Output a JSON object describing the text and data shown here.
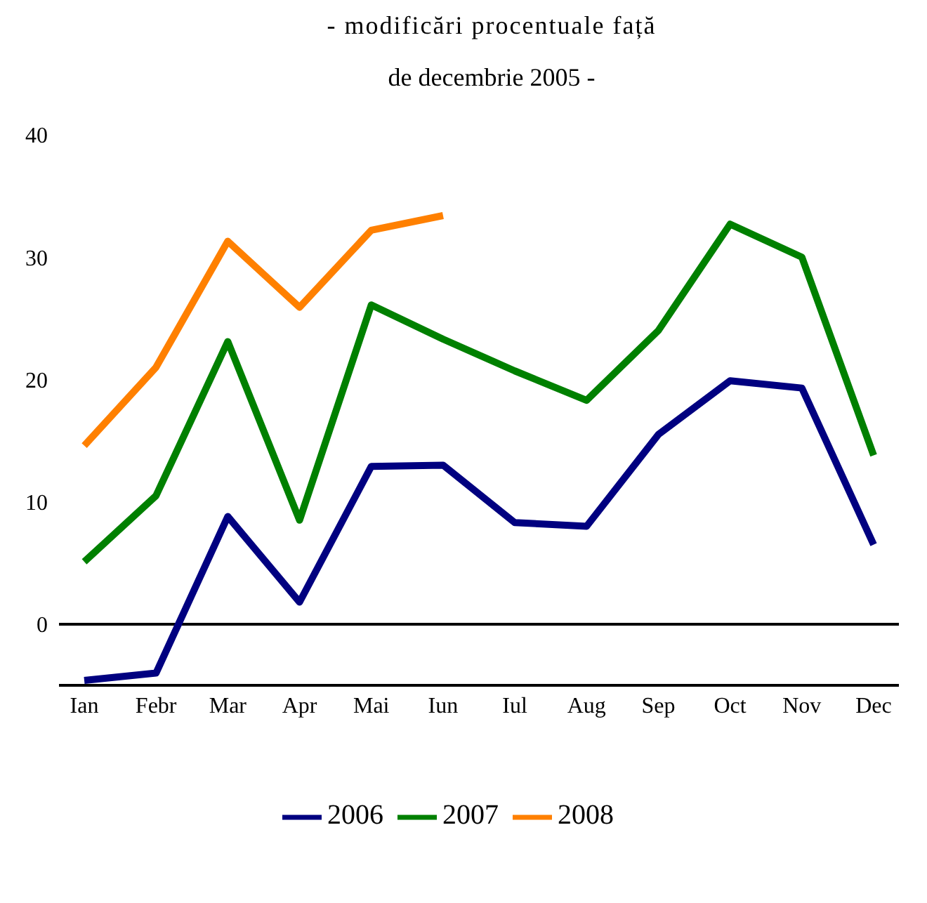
{
  "chart_data": {
    "type": "line",
    "title": "- modificări procentuale față",
    "subtitle": "de decembrie 2005 -",
    "categories": [
      "Ian",
      "Febr",
      "Mar",
      "Apr",
      "Mai",
      "Iun",
      "Iul",
      "Aug",
      "Sep",
      "Oct",
      "Nov",
      "Dec"
    ],
    "series": [
      {
        "name": "2006",
        "color": "#000080",
        "values": [
          -4.6,
          -4.0,
          8.8,
          1.8,
          12.9,
          13.0,
          8.3,
          8.0,
          15.5,
          19.9,
          19.3,
          6.5
        ]
      },
      {
        "name": "2007",
        "color": "#008000",
        "values": [
          5.1,
          10.5,
          23.1,
          8.5,
          26.1,
          23.3,
          20.7,
          18.3,
          24.0,
          32.7,
          30.0,
          13.8
        ]
      },
      {
        "name": "2008",
        "color": "#ff8000",
        "values": [
          14.6,
          21.0,
          31.3,
          25.9,
          32.2,
          33.4,
          null,
          null,
          null,
          null,
          null,
          null
        ]
      }
    ],
    "ylim": [
      -5,
      40
    ],
    "yticks": [
      0,
      10,
      20,
      30,
      40
    ],
    "ref_lines": [
      {
        "axis": "y",
        "value": 0,
        "color": "#000000"
      }
    ],
    "grid": false,
    "legend": "bottom",
    "marker": "none",
    "line_style": "solid"
  }
}
